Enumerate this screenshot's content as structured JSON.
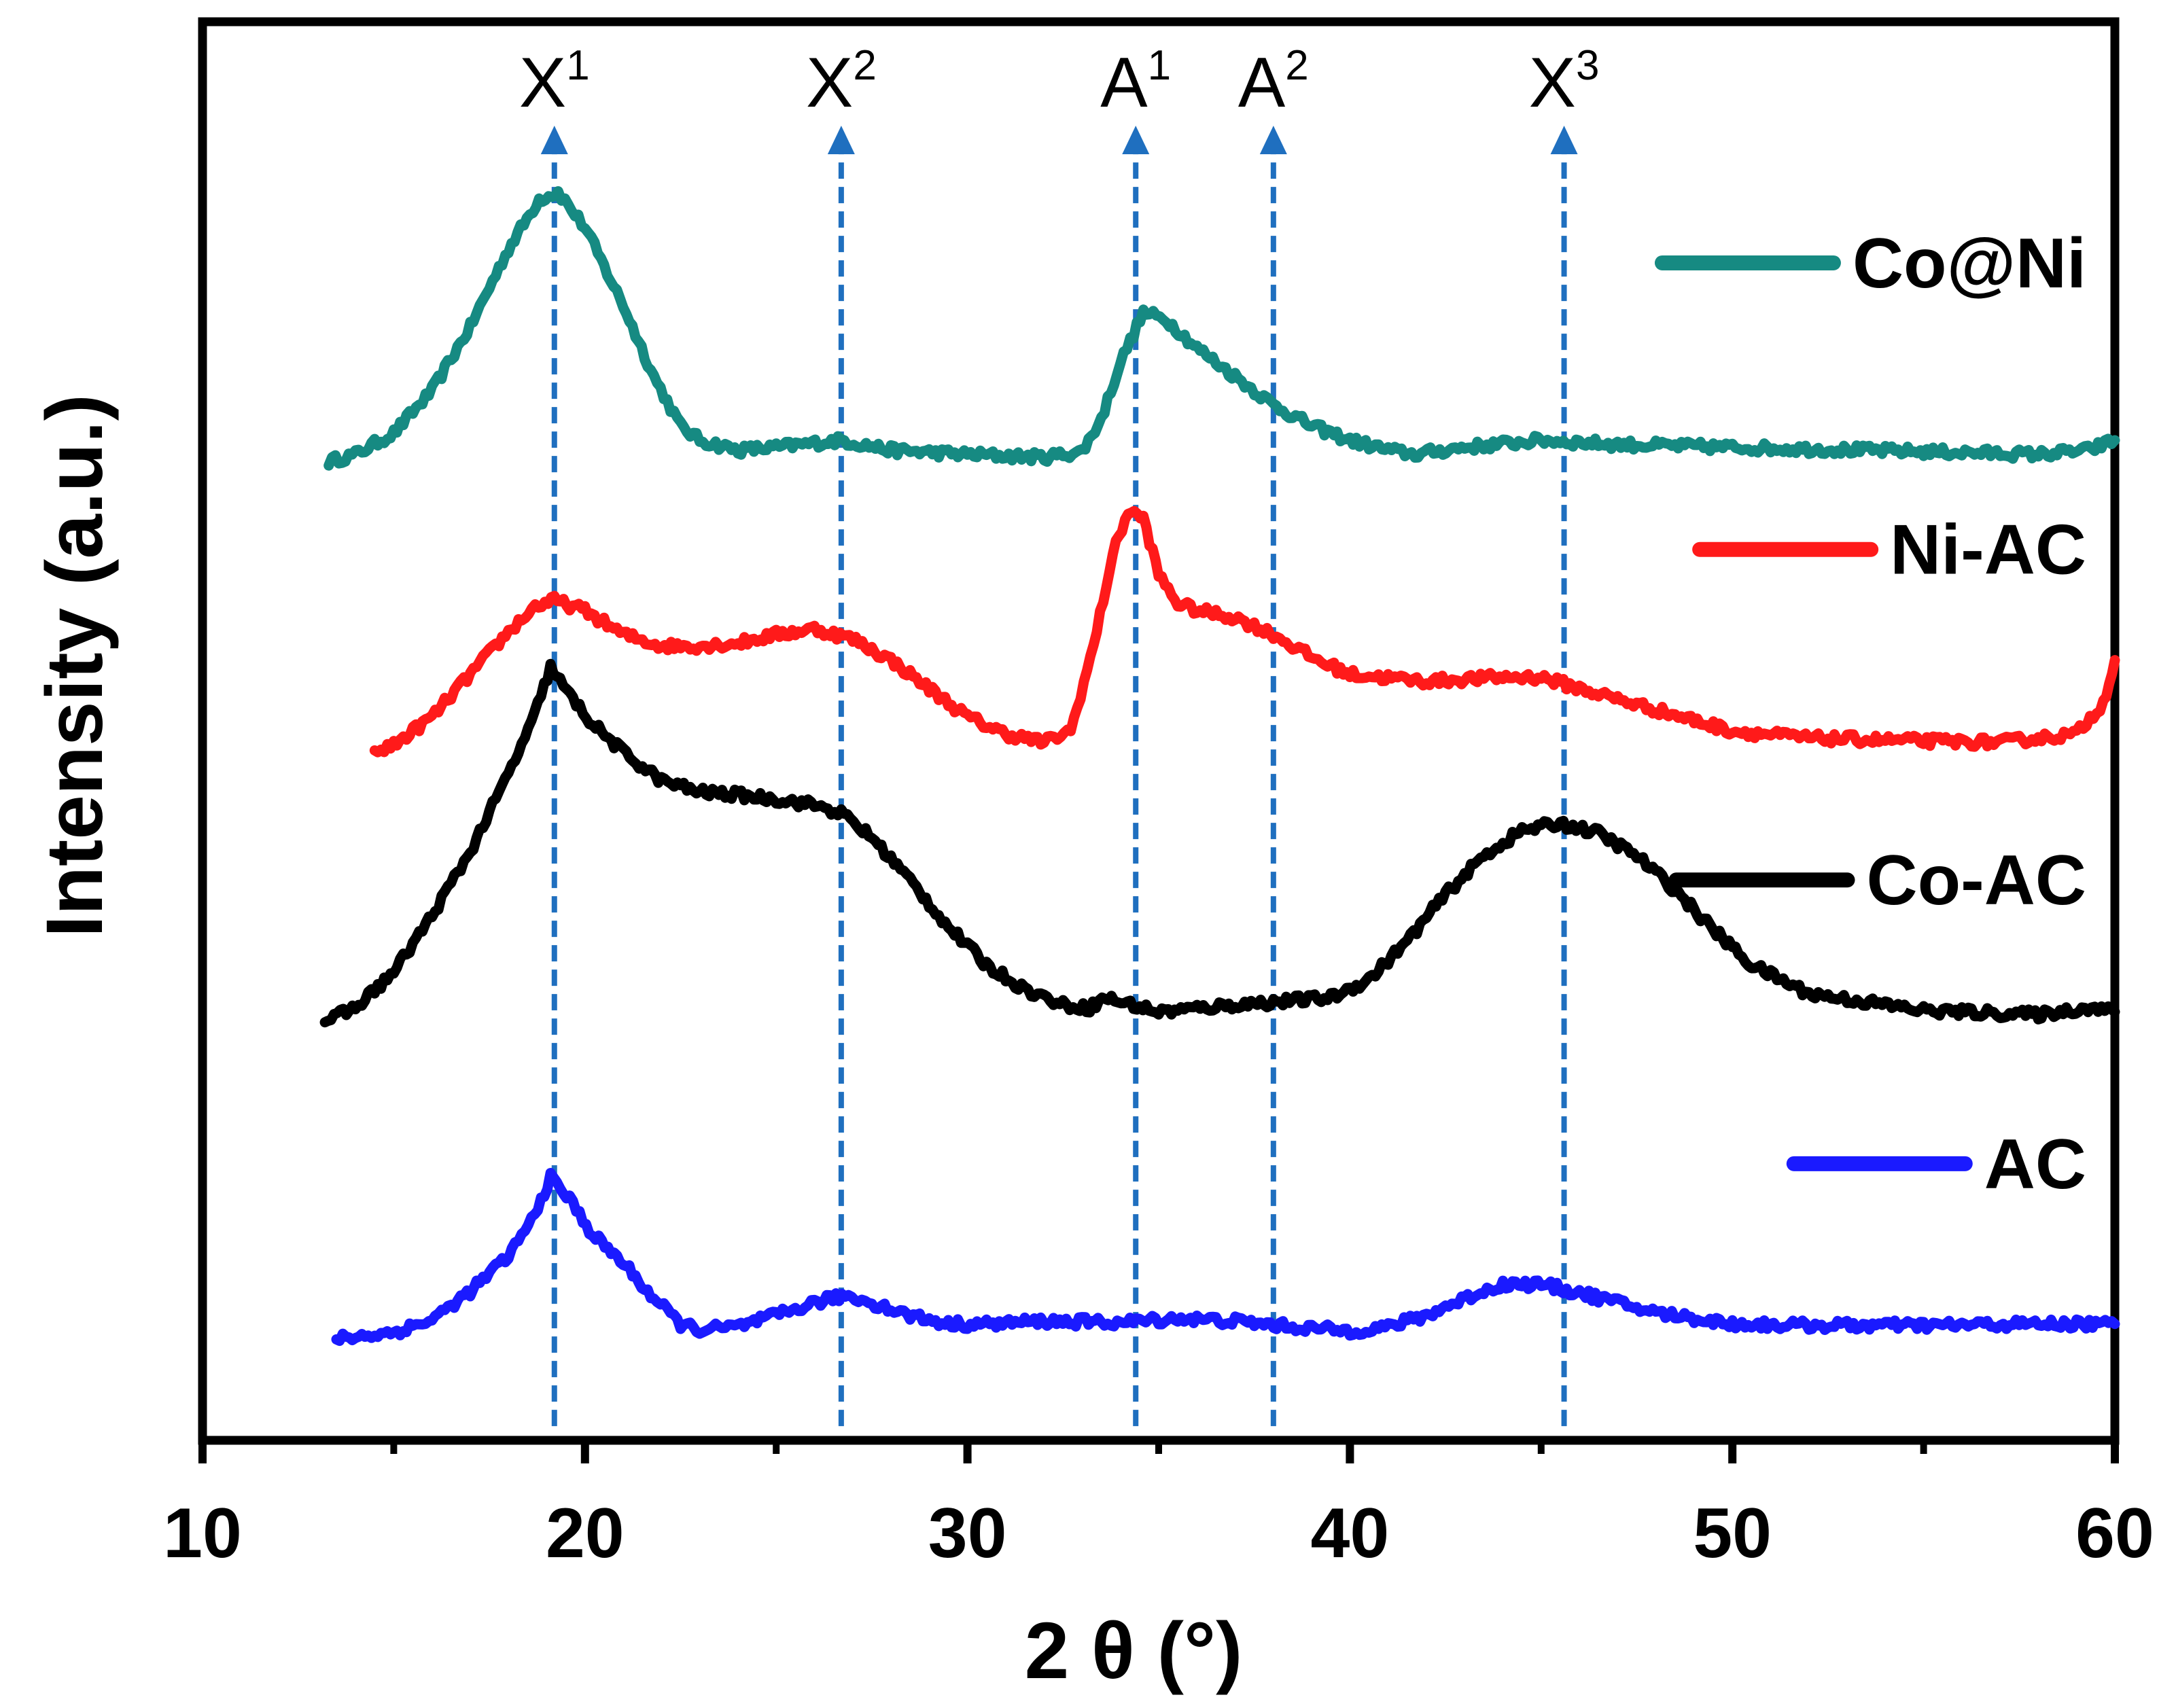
{
  "chart_data": {
    "type": "line",
    "xlabel": "2 θ (°)",
    "ylabel": "Intensity (a.u.)",
    "xlim": [
      10,
      60
    ],
    "xticks": [
      10,
      20,
      30,
      40,
      50,
      60
    ],
    "ylim": [
      0,
      10
    ],
    "yticks_shown": false,
    "legend_position": "right",
    "markers": [
      {
        "base": "X",
        "sup": "1",
        "x": 19.2,
        "color": "#1f6fbf"
      },
      {
        "base": "X",
        "sup": "2",
        "x": 26.7,
        "color": "#1f6fbf"
      },
      {
        "base": "A",
        "sup": "1",
        "x": 34.4,
        "color": "#1f6fbf"
      },
      {
        "base": "A",
        "sup": "2",
        "x": 38.0,
        "color": "#1f6fbf"
      },
      {
        "base": "X",
        "sup": "3",
        "x": 45.6,
        "color": "#1f6fbf"
      }
    ],
    "marker_y_range": [
      0.1,
      9.2
    ],
    "series": [
      {
        "name": "Co@Ni",
        "color": "#168a82",
        "legend_y": 8.3,
        "x": [
          13.3,
          14,
          15,
          16,
          17,
          18,
          18.8,
          19.3,
          20,
          21,
          21.8,
          22.5,
          23,
          24,
          25,
          26.7,
          28,
          30,
          32,
          33,
          33.5,
          34,
          34.6,
          35.2,
          36,
          37,
          38,
          39,
          40,
          41,
          41.7,
          43,
          45,
          47,
          50,
          55,
          58,
          59.3,
          60
        ],
        "values": [
          6.9,
          6.95,
          7.1,
          7.4,
          7.85,
          8.4,
          8.75,
          8.8,
          8.55,
          8.0,
          7.5,
          7.15,
          7.05,
          6.98,
          7.0,
          7.05,
          6.98,
          6.95,
          6.93,
          6.97,
          7.2,
          7.6,
          7.95,
          7.9,
          7.7,
          7.5,
          7.3,
          7.15,
          7.05,
          6.98,
          6.95,
          7.0,
          7.05,
          7.02,
          7.0,
          6.97,
          6.95,
          6.98,
          7.05
        ]
      },
      {
        "name": "Ni-AC",
        "color": "#ff1a1a",
        "legend_y": 6.28,
        "x": [
          14.5,
          15,
          16,
          17,
          18,
          18.7,
          19.2,
          20,
          21,
          22,
          23,
          24,
          25,
          26,
          27,
          28,
          29,
          30,
          31,
          32,
          32.7,
          33.3,
          33.8,
          34.2,
          34.6,
          35,
          35.5,
          36,
          37,
          38,
          39,
          40,
          42,
          44,
          45,
          46,
          48,
          50,
          52,
          55,
          57,
          59,
          59.7,
          60
        ],
        "values": [
          4.85,
          4.9,
          5.1,
          5.4,
          5.7,
          5.88,
          5.92,
          5.85,
          5.68,
          5.6,
          5.6,
          5.62,
          5.68,
          5.72,
          5.65,
          5.5,
          5.3,
          5.1,
          4.98,
          4.92,
          5.0,
          5.6,
          6.25,
          6.55,
          6.5,
          6.1,
          5.9,
          5.85,
          5.8,
          5.68,
          5.52,
          5.4,
          5.35,
          5.38,
          5.38,
          5.3,
          5.15,
          5.0,
          4.95,
          4.93,
          4.92,
          4.98,
          5.2,
          5.5
        ]
      },
      {
        "name": "Co-AC",
        "color": "#000000",
        "legend_y": 3.95,
        "x": [
          13.2,
          14,
          15,
          16,
          17,
          18,
          18.6,
          19.1,
          19.6,
          20.2,
          21,
          22,
          23,
          24,
          25,
          26,
          26.7,
          27.5,
          28.5,
          29.5,
          30.5,
          31.5,
          32.5,
          33.2,
          33.6,
          35,
          37,
          38.5,
          39.5,
          40.5,
          41.5,
          42.5,
          43.5,
          44.5,
          45.5,
          46.5,
          47.5,
          48.5,
          49.5,
          50.5,
          52,
          55,
          58,
          59.3,
          60
        ],
        "values": [
          2.95,
          3.05,
          3.3,
          3.7,
          4.15,
          4.7,
          5.05,
          5.45,
          5.25,
          5.05,
          4.85,
          4.65,
          4.57,
          4.55,
          4.52,
          4.48,
          4.42,
          4.25,
          3.95,
          3.62,
          3.35,
          3.18,
          3.07,
          3.05,
          3.12,
          3.02,
          3.07,
          3.1,
          3.12,
          3.25,
          3.52,
          3.85,
          4.12,
          4.3,
          4.35,
          4.28,
          4.12,
          3.88,
          3.6,
          3.35,
          3.15,
          3.03,
          3.0,
          3.05,
          3.02
        ]
      },
      {
        "name": "AC",
        "color": "#1a1aff",
        "legend_y": 1.95,
        "x": [
          13.5,
          14,
          15,
          16,
          17,
          18,
          18.6,
          19.1,
          19.6,
          20.2,
          21,
          21.8,
          22.5,
          23,
          24,
          25,
          26,
          26.8,
          27.5,
          28.5,
          29.5,
          30.5,
          32,
          34,
          35.5,
          37,
          38.5,
          40,
          41,
          42,
          43,
          44,
          45,
          46,
          47,
          48,
          49.5,
          50,
          52,
          55,
          58,
          60
        ],
        "values": [
          0.72,
          0.73,
          0.76,
          0.85,
          1.05,
          1.3,
          1.55,
          1.85,
          1.7,
          1.45,
          1.25,
          1.0,
          0.82,
          0.78,
          0.8,
          0.88,
          0.97,
          1.02,
          0.97,
          0.88,
          0.82,
          0.82,
          0.84,
          0.83,
          0.86,
          0.84,
          0.8,
          0.77,
          0.8,
          0.88,
          1.0,
          1.1,
          1.1,
          1.04,
          0.97,
          0.9,
          0.84,
          0.82,
          0.81,
          0.81,
          0.82,
          0.82
        ]
      }
    ]
  }
}
